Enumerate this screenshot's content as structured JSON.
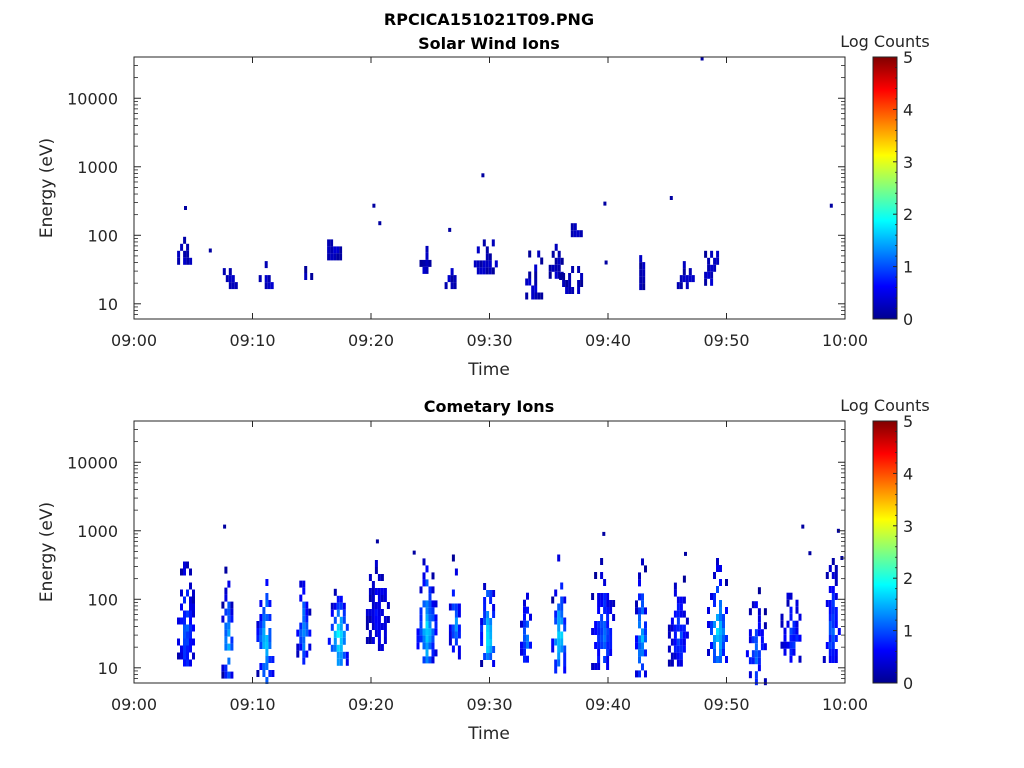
{
  "figure_title": "RPCICA151021T09.PNG",
  "colors": {
    "colormap": [
      "#00008f",
      "#0000ff",
      "#0080ff",
      "#00ffff",
      "#80ff80",
      "#ffff00",
      "#ff8000",
      "#ff0000",
      "#800000"
    ],
    "axes": "#262626"
  },
  "chart_data": [
    {
      "type": "heatmap",
      "title": "Solar Wind Ions",
      "xlabel": "Time",
      "ylabel": "Energy (eV)",
      "yscale": "log",
      "xlim": [
        "09:00",
        "10:00"
      ],
      "ylim": [
        6,
        40000
      ],
      "x_ticks": [
        "09:00",
        "09:10",
        "09:20",
        "09:30",
        "09:40",
        "09:50",
        "10:00"
      ],
      "y_ticks": [
        "10",
        "100",
        "1000",
        "10000"
      ],
      "colorbar": {
        "label": "Log Counts",
        "range": [
          0,
          5
        ],
        "ticks": [
          "0",
          "1",
          "2",
          "3",
          "4",
          "5"
        ]
      },
      "clusters": [
        {
          "t": 4.5,
          "e_lo": 28,
          "e_hi": 35,
          "v": 0.1
        },
        {
          "t": 4.4,
          "e_lo": 45,
          "e_hi": 95,
          "v": 0.1
        },
        {
          "t": 8.0,
          "e_lo": 17,
          "e_hi": 42,
          "v": 0.15
        },
        {
          "t": 11.2,
          "e_lo": 17,
          "e_hi": 42,
          "v": 0.15
        },
        {
          "t": 14.7,
          "e_lo": 25,
          "e_hi": 45,
          "v": 0.1
        },
        {
          "t": 16.8,
          "e_lo": 45,
          "e_hi": 110,
          "v": 0.15
        },
        {
          "t": 24.6,
          "e_lo": 30,
          "e_hi": 70,
          "v": 0.1
        },
        {
          "t": 26.8,
          "e_lo": 17,
          "e_hi": 42,
          "v": 0.15
        },
        {
          "t": 29.6,
          "e_lo": 30,
          "e_hi": 110,
          "v": 0.15
        },
        {
          "t": 33.6,
          "e_lo": 13,
          "e_hi": 60,
          "v": 0.15
        },
        {
          "t": 35.5,
          "e_lo": 25,
          "e_hi": 75,
          "v": 0.15
        },
        {
          "t": 36.8,
          "e_lo": 14,
          "e_hi": 45,
          "v": 0.1
        },
        {
          "t": 37.2,
          "e_lo": 95,
          "e_hi": 190,
          "v": 0.1
        },
        {
          "t": 42.8,
          "e_lo": 18,
          "e_hi": 65,
          "v": 0.1
        },
        {
          "t": 46.4,
          "e_lo": 20,
          "e_hi": 42,
          "v": 0.1
        },
        {
          "t": 48.7,
          "e_lo": 22,
          "e_hi": 75,
          "v": 0.15
        },
        {
          "t": 50.5,
          "e_lo": 35,
          "e_hi": 42,
          "v": 0.1
        }
      ],
      "isolated": [
        {
          "t": 4.3,
          "e": 250
        },
        {
          "t": 20.2,
          "e": 270
        },
        {
          "t": 20.7,
          "e": 150
        },
        {
          "t": 26.6,
          "e": 120
        },
        {
          "t": 29.4,
          "e": 750
        },
        {
          "t": 39.7,
          "e": 290
        },
        {
          "t": 45.3,
          "e": 350
        },
        {
          "t": 47.9,
          "e": 38000
        },
        {
          "t": 58.8,
          "e": 270
        },
        {
          "t": 39.8,
          "e": 40
        },
        {
          "t": 6.4,
          "e": 60
        }
      ]
    },
    {
      "type": "heatmap",
      "title": "Cometary Ions",
      "xlabel": "Time",
      "ylabel": "Energy (eV)",
      "yscale": "log",
      "xlim": [
        "09:00",
        "10:00"
      ],
      "ylim": [
        6,
        40000
      ],
      "x_ticks": [
        "09:00",
        "09:10",
        "09:20",
        "09:30",
        "09:40",
        "09:50",
        "10:00"
      ],
      "y_ticks": [
        "10",
        "100",
        "1000",
        "10000"
      ],
      "colorbar": {
        "label": "Log Counts",
        "range": [
          0,
          5
        ],
        "ticks": [
          "0",
          "1",
          "2",
          "3",
          "4",
          "5"
        ]
      },
      "clusters": [
        {
          "t": 4.3,
          "e_lo": 12,
          "e_hi": 450,
          "v": 1.0
        },
        {
          "t": 7.8,
          "e_lo": 8,
          "e_hi": 300,
          "v": 1.6
        },
        {
          "t": 11.0,
          "e_lo": 7,
          "e_hi": 400,
          "v": 1.6
        },
        {
          "t": 14.2,
          "e_lo": 14,
          "e_hi": 300,
          "v": 1.2
        },
        {
          "t": 17.2,
          "e_lo": 13,
          "e_hi": 180,
          "v": 1.9
        },
        {
          "t": 20.5,
          "e_lo": 22,
          "e_hi": 600,
          "v": 0.5
        },
        {
          "t": 24.6,
          "e_lo": 12,
          "e_hi": 500,
          "v": 1.6
        },
        {
          "t": 27.0,
          "e_lo": 16,
          "e_hi": 450,
          "v": 1.3
        },
        {
          "t": 29.8,
          "e_lo": 11,
          "e_hi": 350,
          "v": 1.8
        },
        {
          "t": 33.0,
          "e_lo": 13,
          "e_hi": 200,
          "v": 1.2
        },
        {
          "t": 35.8,
          "e_lo": 9,
          "e_hi": 450,
          "v": 1.7
        },
        {
          "t": 39.5,
          "e_lo": 10,
          "e_hi": 400,
          "v": 1.0
        },
        {
          "t": 42.7,
          "e_lo": 8,
          "e_hi": 500,
          "v": 1.5
        },
        {
          "t": 45.9,
          "e_lo": 12,
          "e_hi": 280,
          "v": 0.8
        },
        {
          "t": 49.2,
          "e_lo": 12,
          "e_hi": 400,
          "v": 1.6
        },
        {
          "t": 52.4,
          "e_lo": 7,
          "e_hi": 150,
          "v": 1.0
        },
        {
          "t": 55.4,
          "e_lo": 13,
          "e_hi": 200,
          "v": 0.8
        },
        {
          "t": 58.8,
          "e_lo": 13,
          "e_hi": 400,
          "v": 1.0
        }
      ],
      "isolated": [
        {
          "t": 7.6,
          "e": 1150
        },
        {
          "t": 20.5,
          "e": 700
        },
        {
          "t": 39.6,
          "e": 900
        },
        {
          "t": 56.4,
          "e": 1150
        },
        {
          "t": 59.4,
          "e": 1000
        },
        {
          "t": 59.7,
          "e": 400
        },
        {
          "t": 23.6,
          "e": 480
        },
        {
          "t": 57.0,
          "e": 470
        },
        {
          "t": 46.5,
          "e": 460
        }
      ]
    }
  ]
}
